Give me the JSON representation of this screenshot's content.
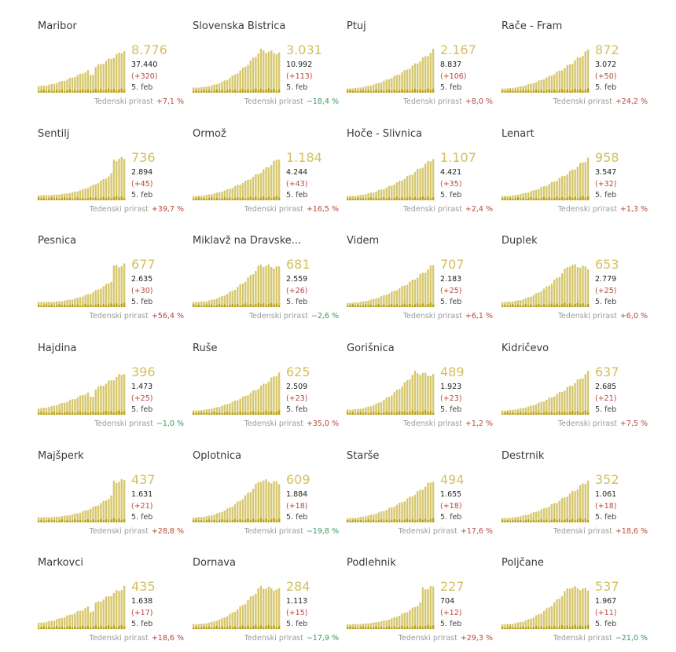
{
  "colors": {
    "bar_active": "#d6c76e",
    "bar_daily": "#b9a012",
    "value": "#d3bf5f",
    "increase": "#b44a3a",
    "decrease": "#3a9a5e"
  },
  "labels": {
    "weekly": "Tedenski prirast",
    "date": "5. feb"
  },
  "chart_data": [
    {
      "type": "bar",
      "title": "Maribor",
      "active": "8.776",
      "total": "37.440",
      "new": "(+320)",
      "weekly": "+7,1 %",
      "weekly_dir": "up",
      "shape": "m"
    },
    {
      "type": "bar",
      "title": "Slovenska Bistrica",
      "active": "3.031",
      "total": "10.992",
      "new": "(+113)",
      "weekly": "−18,4 %",
      "weekly_dir": "down",
      "shape": "p"
    },
    {
      "type": "bar",
      "title": "Ptuj",
      "active": "2.167",
      "total": "8.837",
      "new": "(+106)",
      "weekly": "+8,0 %",
      "weekly_dir": "up",
      "shape": "s"
    },
    {
      "type": "bar",
      "title": "Rače - Fram",
      "active": "872",
      "total": "3.072",
      "new": "(+50)",
      "weekly": "+24,2 %",
      "weekly_dir": "up",
      "shape": "s"
    },
    {
      "type": "bar",
      "title": "Šentilj",
      "active": "736",
      "total": "2.894",
      "new": "(+45)",
      "weekly": "+39,7 %",
      "weekly_dir": "up",
      "shape": "l"
    },
    {
      "type": "bar",
      "title": "Ormož",
      "active": "1.184",
      "total": "4.244",
      "new": "(+43)",
      "weekly": "+16,5 %",
      "weekly_dir": "up",
      "shape": "s"
    },
    {
      "type": "bar",
      "title": "Hoče - Slivnica",
      "active": "1.107",
      "total": "4.421",
      "new": "(+35)",
      "weekly": "+2,4 %",
      "weekly_dir": "up",
      "shape": "s"
    },
    {
      "type": "bar",
      "title": "Lenart",
      "active": "958",
      "total": "3.547",
      "new": "(+32)",
      "weekly": "+1,3 %",
      "weekly_dir": "up",
      "shape": "s"
    },
    {
      "type": "bar",
      "title": "Pesnica",
      "active": "677",
      "total": "2.635",
      "new": "(+30)",
      "weekly": "+56,4 %",
      "weekly_dir": "up",
      "shape": "l"
    },
    {
      "type": "bar",
      "title": "Miklavž na Dravske...",
      "active": "681",
      "total": "2.559",
      "new": "(+26)",
      "weekly": "−2,6 %",
      "weekly_dir": "down",
      "shape": "p"
    },
    {
      "type": "bar",
      "title": "Videm",
      "active": "707",
      "total": "2.183",
      "new": "(+25)",
      "weekly": "+6,1 %",
      "weekly_dir": "up",
      "shape": "s"
    },
    {
      "type": "bar",
      "title": "Duplek",
      "active": "653",
      "total": "2.779",
      "new": "(+25)",
      "weekly": "+6,0 %",
      "weekly_dir": "up",
      "shape": "p"
    },
    {
      "type": "bar",
      "title": "Hajdina",
      "active": "396",
      "total": "1.473",
      "new": "(+25)",
      "weekly": "−1,0 %",
      "weekly_dir": "down",
      "shape": "m"
    },
    {
      "type": "bar",
      "title": "Ruše",
      "active": "625",
      "total": "2.509",
      "new": "(+23)",
      "weekly": "+35,0 %",
      "weekly_dir": "up",
      "shape": "s"
    },
    {
      "type": "bar",
      "title": "Gorišnica",
      "active": "489",
      "total": "1.923",
      "new": "(+23)",
      "weekly": "+1,2 %",
      "weekly_dir": "up",
      "shape": "p"
    },
    {
      "type": "bar",
      "title": "Kidričevo",
      "active": "637",
      "total": "2.685",
      "new": "(+21)",
      "weekly": "+7,5 %",
      "weekly_dir": "up",
      "shape": "s"
    },
    {
      "type": "bar",
      "title": "Majšperk",
      "active": "437",
      "total": "1.631",
      "new": "(+21)",
      "weekly": "+28,8 %",
      "weekly_dir": "up",
      "shape": "l"
    },
    {
      "type": "bar",
      "title": "Oplotnica",
      "active": "609",
      "total": "1.884",
      "new": "(+18)",
      "weekly": "−19,8 %",
      "weekly_dir": "down",
      "shape": "p"
    },
    {
      "type": "bar",
      "title": "Starše",
      "active": "494",
      "total": "1.655",
      "new": "(+18)",
      "weekly": "+17,6 %",
      "weekly_dir": "up",
      "shape": "s"
    },
    {
      "type": "bar",
      "title": "Destrnik",
      "active": "352",
      "total": "1.061",
      "new": "(+18)",
      "weekly": "+18,6 %",
      "weekly_dir": "up",
      "shape": "s"
    },
    {
      "type": "bar",
      "title": "Markovci",
      "active": "435",
      "total": "1.638",
      "new": "(+17)",
      "weekly": "+18,6 %",
      "weekly_dir": "up",
      "shape": "m"
    },
    {
      "type": "bar",
      "title": "Dornava",
      "active": "284",
      "total": "1.113",
      "new": "(+15)",
      "weekly": "−17,9 %",
      "weekly_dir": "down",
      "shape": "p"
    },
    {
      "type": "bar",
      "title": "Podlehnik",
      "active": "227",
      "total": "704",
      "new": "(+12)",
      "weekly": "+29,3 %",
      "weekly_dir": "up",
      "shape": "l"
    },
    {
      "type": "bar",
      "title": "Poljčane",
      "active": "537",
      "total": "1.967",
      "new": "(+11)",
      "weekly": "−21,0 %",
      "weekly_dir": "down",
      "shape": "p"
    }
  ]
}
